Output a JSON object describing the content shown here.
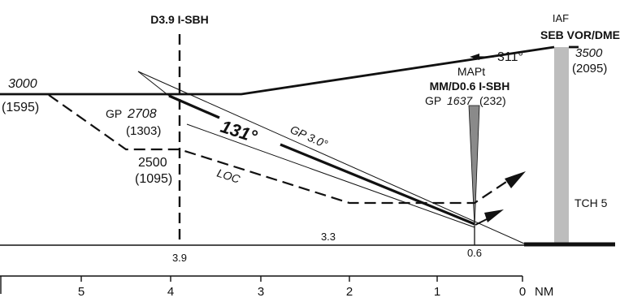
{
  "fix_d39": {
    "label": "D3.9 I-SBH"
  },
  "iaf": {
    "label": "IAF",
    "name": "SEB VOR/DME",
    "altitude": "3500",
    "height": "(2095)",
    "course": "311°"
  },
  "initial": {
    "altitude": "3000",
    "height": "(1595)"
  },
  "gp_point": {
    "prefix": "GP",
    "altitude": "2708",
    "height": "(1303)"
  },
  "final_course": "131°",
  "glidepath_label": "GP 3.0°",
  "step": {
    "altitude": "2500",
    "height": "(1095)"
  },
  "loc_label": "LOC",
  "mapt": {
    "label": "MAPt",
    "name": "MM/D0.6 I-SBH",
    "gp_prefix": "GP",
    "gp_altitude": "1637",
    "gp_height": "(232)"
  },
  "tch_label": "TCH 5",
  "segment_distance": "3.3",
  "fix_distances": [
    "3.9",
    "0.6"
  ],
  "scale": {
    "ticks": [
      "5",
      "4",
      "3",
      "2",
      "1",
      "0"
    ],
    "unit": "NM"
  },
  "colors": {
    "ink": "#111111",
    "runway_band": "#bdbdbd",
    "mm_marker": "#8a8a8a"
  }
}
